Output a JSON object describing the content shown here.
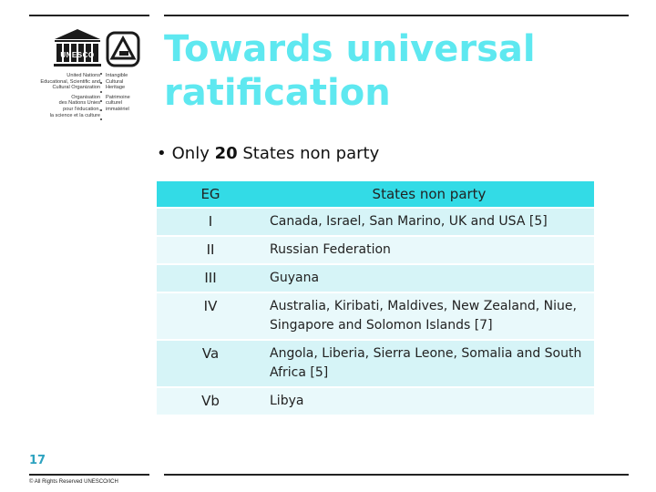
{
  "title": "Towards universal ratification",
  "bullet": {
    "prefix": "Only ",
    "count": "20",
    "suffix": " States non party"
  },
  "table": {
    "headers": {
      "eg": "EG",
      "states": "States non party"
    },
    "rows": [
      {
        "eg": "I",
        "states": "Canada, Israel, San Marino, UK and USA [5]"
      },
      {
        "eg": "II",
        "states": "Russian Federation"
      },
      {
        "eg": "III",
        "states": "Guyana"
      },
      {
        "eg": "IV",
        "states": "Australia, Kiribati, Maldives, New Zealand, Niue, Singapore and Solomon Islands [7]"
      },
      {
        "eg": "Va",
        "states": "Angola, Liberia, Sierra Leone, Somalia and South Africa [5]"
      },
      {
        "eg": "Vb",
        "states": "Libya"
      }
    ]
  },
  "logo": {
    "unesco_word": "UNESCO",
    "left_lines": [
      "United Nations",
      "Educational, Scientific and",
      "Cultural Organization",
      "",
      "Organisation",
      "des Nations Unies",
      "pour l'éducation,",
      "la science et la culture"
    ],
    "right_lines": [
      "Intangible",
      "Cultural",
      "Heritage",
      "",
      "Patrimoine",
      "culturel",
      "immatériel"
    ]
  },
  "footer": {
    "page_number": "17",
    "copyright": "© All Rights Reserved UNESCO/ICH"
  },
  "colors": {
    "title": "#5ee8f0",
    "header_bg": "#33dbe6",
    "row_odd": "#d6f4f7",
    "row_even": "#e9f9fb",
    "page_number": "#2ea3c0"
  }
}
